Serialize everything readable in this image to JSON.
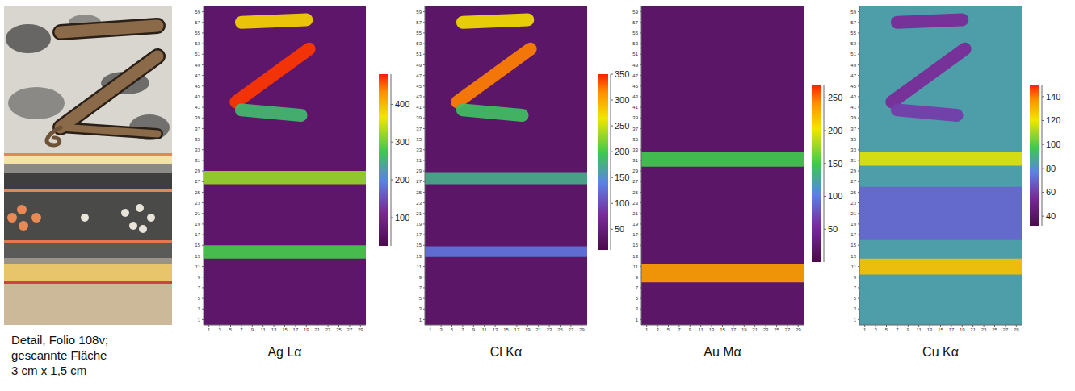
{
  "photo": {
    "caption": [
      "Detail, Folio 108v;",
      "gescannte Fläche",
      "3 cm x 1,5 cm"
    ]
  },
  "chart_data": [
    {
      "type": "heatmap",
      "title": "Ag Lα",
      "xlim": [
        0,
        30
      ],
      "ylim": [
        0,
        60
      ],
      "xticks": [
        1,
        3,
        5,
        7,
        9,
        11,
        13,
        15,
        17,
        19,
        21,
        23,
        25,
        27,
        29
      ],
      "yticks": [
        1,
        3,
        5,
        7,
        9,
        11,
        13,
        15,
        17,
        19,
        21,
        23,
        25,
        27,
        29,
        31,
        33,
        35,
        37,
        39,
        41,
        43,
        45,
        47,
        49,
        51,
        53,
        55,
        57,
        59
      ],
      "colorbar": {
        "range": [
          25,
          480
        ],
        "ticks": [
          100,
          200,
          300,
          400
        ]
      },
      "background": 60,
      "bands": [
        {
          "y": [
            26.5,
            29
          ],
          "value": 320
        },
        {
          "y": [
            12.5,
            15
          ],
          "value": 280
        }
      ],
      "strokes": [
        {
          "points": [
            [
              7,
              57
            ],
            [
              19,
              57.5
            ]
          ],
          "value": 380
        },
        {
          "points": [
            [
              6,
              42
            ],
            [
              19.5,
              52
            ]
          ],
          "value": 470
        },
        {
          "points": [
            [
              7,
              40.5
            ],
            [
              18,
              39.5
            ]
          ],
          "value": 260
        }
      ]
    },
    {
      "type": "heatmap",
      "title": "Cl Kα",
      "xlim": [
        0,
        30
      ],
      "ylim": [
        0,
        60
      ],
      "xticks": [
        1,
        3,
        5,
        7,
        9,
        11,
        13,
        15,
        17,
        19,
        21,
        23,
        25,
        27,
        29
      ],
      "yticks": [
        1,
        3,
        5,
        7,
        9,
        11,
        13,
        15,
        17,
        19,
        21,
        23,
        25,
        27,
        29,
        31,
        33,
        35,
        37,
        39,
        41,
        43,
        45,
        47,
        49,
        51,
        53,
        55,
        57,
        59
      ],
      "colorbar": {
        "range": [
          10,
          350
        ],
        "ticks": [
          50,
          100,
          150,
          200,
          250,
          300,
          350
        ]
      },
      "background": 35,
      "bands": [
        {
          "y": [
            26.5,
            28.8
          ],
          "value": 175
        },
        {
          "y": [
            12.8,
            14.8
          ],
          "value": 130
        }
      ],
      "strokes": [
        {
          "points": [
            [
              7,
              57
            ],
            [
              19,
              57.5
            ]
          ],
          "value": 270
        },
        {
          "points": [
            [
              6,
              42
            ],
            [
              19.5,
              52
            ]
          ],
          "value": 320
        },
        {
          "points": [
            [
              7,
              40.5
            ],
            [
              18,
              39.5
            ]
          ],
          "value": 190
        }
      ]
    },
    {
      "type": "heatmap",
      "title": "Au Mα",
      "xlim": [
        0,
        30
      ],
      "ylim": [
        0,
        60
      ],
      "xticks": [
        1,
        3,
        5,
        7,
        9,
        11,
        13,
        15,
        17,
        19,
        21,
        23,
        25,
        27,
        29
      ],
      "yticks": [
        1,
        3,
        5,
        7,
        9,
        11,
        13,
        15,
        17,
        19,
        21,
        23,
        25,
        27,
        29,
        31,
        33,
        35,
        37,
        39,
        41,
        43,
        45,
        47,
        49,
        51,
        53,
        55,
        57,
        59
      ],
      "colorbar": {
        "range": [
          0,
          270
        ],
        "ticks": [
          50,
          100,
          150,
          200,
          250
        ]
      },
      "background": 20,
      "bands": [
        {
          "y": [
            29.8,
            32.5
          ],
          "value": 150
        },
        {
          "y": [
            8,
            11.5
          ],
          "value": 235
        }
      ],
      "strokes": []
    },
    {
      "type": "heatmap",
      "title": "Cu Kα",
      "xlim": [
        0,
        30
      ],
      "ylim": [
        0,
        60
      ],
      "xticks": [
        1,
        3,
        5,
        7,
        9,
        11,
        13,
        15,
        17,
        19,
        21,
        23,
        25,
        27,
        29
      ],
      "yticks": [
        1,
        3,
        5,
        7,
        9,
        11,
        13,
        15,
        17,
        19,
        21,
        23,
        25,
        27,
        29,
        31,
        33,
        35,
        37,
        39,
        41,
        43,
        45,
        47,
        49,
        51,
        53,
        55,
        57,
        59
      ],
      "colorbar": {
        "range": [
          32,
          150
        ],
        "ticks": [
          40,
          60,
          80,
          100,
          120,
          140
        ]
      },
      "background": 85,
      "bands": [
        {
          "y": [
            16,
            26
          ],
          "value": 70
        },
        {
          "y": [
            30,
            32.5
          ],
          "value": 118
        },
        {
          "y": [
            9.5,
            12.5
          ],
          "value": 128
        }
      ],
      "strokes": [
        {
          "points": [
            [
              7,
              57
            ],
            [
              19,
              57.5
            ]
          ],
          "value": 55
        },
        {
          "points": [
            [
              6,
              42
            ],
            [
              19.5,
              52
            ]
          ],
          "value": 55
        },
        {
          "points": [
            [
              7,
              40.5
            ],
            [
              18,
              39.5
            ]
          ],
          "value": 60
        }
      ]
    }
  ]
}
